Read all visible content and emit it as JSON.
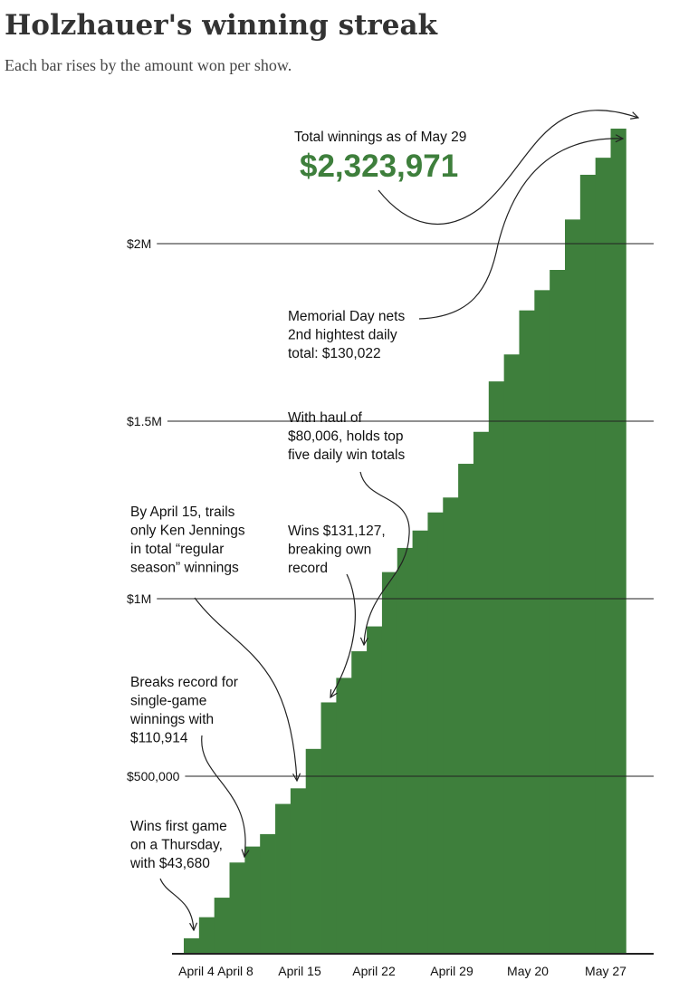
{
  "title": "Holzhauer's winning streak",
  "subtitle": "Each bar rises by the amount won per show.",
  "colors": {
    "bar": "#3e7f3c",
    "total": "#3e7f3c",
    "text": "#111111",
    "gridline": "#222222"
  },
  "chart_data": {
    "type": "bar",
    "chart_style": "cumulative step bars",
    "xlabel": "",
    "ylabel": "",
    "ylim": [
      0,
      2400000
    ],
    "grid": true,
    "yticks": [
      {
        "value": 500000,
        "label": "$500,000"
      },
      {
        "value": 1000000,
        "label": "$1M"
      },
      {
        "value": 1500000,
        "label": "$1.5M"
      },
      {
        "value": 2000000,
        "label": "$2M"
      }
    ],
    "xticks": [
      {
        "index": 0,
        "label": "April 4"
      },
      {
        "index": 3,
        "label": "April 8"
      },
      {
        "index": 8,
        "label": "April 15"
      },
      {
        "index": 13,
        "label": "April 22"
      },
      {
        "index": 18,
        "label": "April 29"
      },
      {
        "index": 23,
        "label": "May 20"
      },
      {
        "index": 28,
        "label": "May 27"
      }
    ],
    "values": [
      43680,
      103000,
      158000,
      257000,
      302000,
      337000,
      422000,
      466000,
      577000,
      708000,
      777000,
      852000,
      922000,
      1075000,
      1143000,
      1192000,
      1243000,
      1285000,
      1380000,
      1470000,
      1612000,
      1688000,
      1812000,
      1869000,
      1926000,
      2068000,
      2193971,
      2242000,
      2323971
    ],
    "total_label": "Total winnings as of May 29",
    "total_value": "$2,323,971",
    "annotations": [
      {
        "id": "total",
        "text": [
          "Total winnings as of May 29"
        ]
      },
      {
        "id": "memorial",
        "text": [
          "Memorial Day nets",
          "2nd hightest daily",
          "total: $130,022"
        ]
      },
      {
        "id": "haul",
        "text": [
          "With haul of",
          "$80,006, holds top",
          "five daily win totals"
        ]
      },
      {
        "id": "april15",
        "text": [
          "By April 15, trails",
          "only Ken Jennings",
          "in total “regular",
          "season” winnings"
        ]
      },
      {
        "id": "wins131",
        "text": [
          "Wins $131,127,",
          "breaking own",
          "record"
        ]
      },
      {
        "id": "record",
        "text": [
          "Breaks record for",
          "single-game",
          "winnings with",
          "$110,914"
        ]
      },
      {
        "id": "first",
        "text": [
          "Wins first game",
          "on a Thursday,",
          "with $43,680"
        ]
      }
    ]
  }
}
